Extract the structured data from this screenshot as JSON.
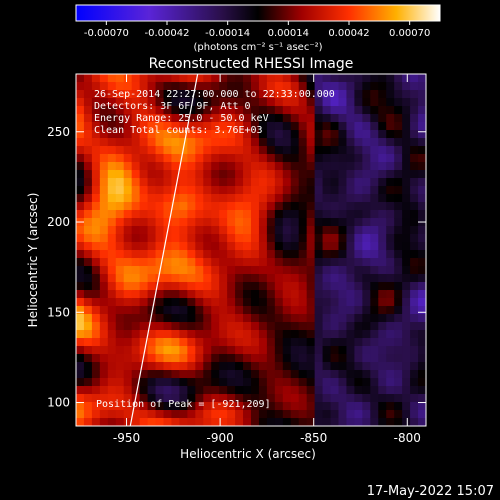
{
  "colorbar": {
    "ticks": [
      "-0.00070",
      "-0.00042",
      "-0.00014",
      "0.00014",
      "0.00042",
      "0.00070"
    ],
    "unit_label": "(photons cm⁻² s⁻¹ asec⁻²)"
  },
  "chart_data": {
    "type": "heatmap",
    "title": "Reconstructed RHESSI Image",
    "xlabel": "Heliocentric X (arcsec)",
    "ylabel": "Heliocentric Y (arcsec)",
    "xlim": [
      -977,
      -790
    ],
    "ylim": [
      87,
      282
    ],
    "x_ticks": [
      -950,
      -900,
      -850,
      -800
    ],
    "y_ticks": [
      100,
      150,
      200,
      250
    ],
    "x_tick_labels": [
      "-950",
      "-900",
      "-850",
      "-800"
    ],
    "y_tick_labels": [
      "100",
      "150",
      "200",
      "250"
    ],
    "color_range": [
      -0.0007,
      0.0007
    ],
    "colormap": "blue-purple-black-red-orange-yellow-white",
    "annotations": [
      "26-Sep-2014 22:27:00.000 to 22:33:00.000",
      "Detectors: 3F 6F 9F, Att 0",
      "Energy Range: 25.0 - 50.0 keV",
      "Clean    Total counts: 3.76E+03"
    ],
    "peak_label": "Position of Peak = [-921,209]",
    "peak_position": [
      -921,
      209
    ],
    "limb_line": [
      [
        -948,
        87
      ],
      [
        -912,
        282
      ]
    ]
  },
  "footer": {
    "date": "17-May-2022 15:07"
  }
}
